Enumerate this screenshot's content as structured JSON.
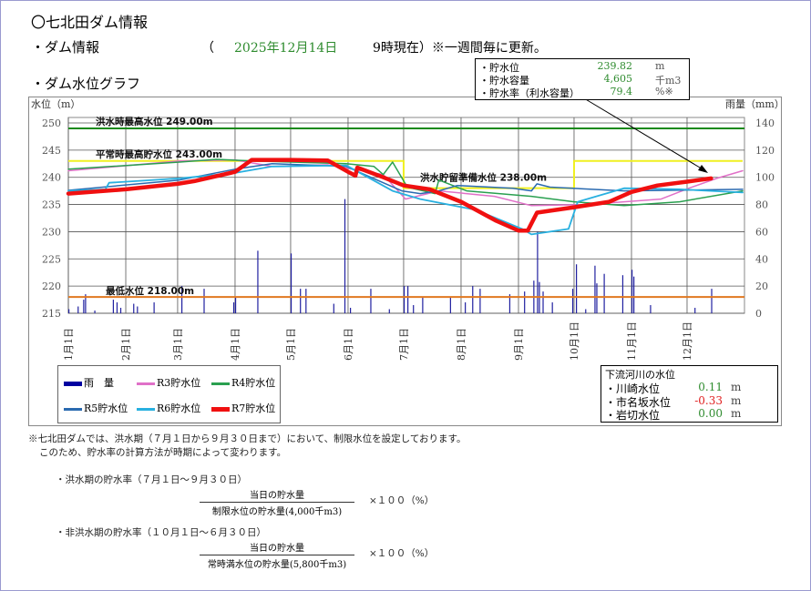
{
  "header": {
    "title": "〇七北田ダム情報",
    "dam_info_label": "・ダム情報",
    "open_paren": "（",
    "date": "2025年12月14日",
    "time_note": "9時現在）※一週間毎に更新。",
    "graph_label": "・ダム水位グラフ"
  },
  "callout": {
    "rows": [
      {
        "label": "・貯水位",
        "value": "239.82",
        "unit": "m"
      },
      {
        "label": "・貯水容量",
        "value": "4,605",
        "unit": "千m3"
      },
      {
        "label": "・貯水率（利水容量）",
        "value": "79.4",
        "unit": "%※"
      }
    ]
  },
  "chart_data": {
    "type": "line",
    "ylabel": "水位（m）",
    "y2label": "雨量（mm）",
    "ylim": [
      215,
      250
    ],
    "y2lim": [
      0,
      140
    ],
    "yticks": [
      "250",
      "245",
      "240",
      "235",
      "230",
      "225",
      "220",
      "215"
    ],
    "y2ticks": [
      "140",
      "120",
      "100",
      "80",
      "60",
      "40",
      "20",
      "0"
    ],
    "xticks": [
      "1月1日",
      "2月1日",
      "3月1日",
      "4月1日",
      "5月1日",
      "6月1日",
      "7月1日",
      "8月1日",
      "9月1日",
      "10月1日",
      "11月1日",
      "12月1日"
    ],
    "x_unit": "day of year",
    "grid": true,
    "reference_lines": [
      {
        "label": "洪水時最高水位 249.00m",
        "value": 249,
        "color": "#1a8a1a"
      },
      {
        "label": "平常時最高貯水位 243.00m",
        "value": 243,
        "color": "#f0f020"
      },
      {
        "label": "洪水貯留準備水位 238.00m",
        "value": 238,
        "color": "#f0f020"
      },
      {
        "label": "最低水位 218.00m",
        "value": 218,
        "color": "#e07820"
      }
    ],
    "restriction_schedule": [
      [
        0,
        243
      ],
      [
        181,
        243
      ],
      [
        181,
        238
      ],
      [
        273,
        238
      ],
      [
        273,
        243
      ],
      [
        364,
        243
      ]
    ],
    "series": [
      {
        "name": "R3貯水位",
        "color": "#e070c8",
        "width": 1.5,
        "points": [
          [
            0,
            241.2
          ],
          [
            60,
            243
          ],
          [
            90,
            243.2
          ],
          [
            110,
            242
          ],
          [
            140,
            242.3
          ],
          [
            170,
            240.5
          ],
          [
            182,
            236
          ],
          [
            200,
            237.5
          ],
          [
            230,
            236.5
          ],
          [
            250,
            234.8
          ],
          [
            280,
            235
          ],
          [
            320,
            236
          ],
          [
            335,
            238
          ],
          [
            350,
            239.8
          ],
          [
            364,
            241.2
          ]
        ]
      },
      {
        "name": "R4貯水位",
        "color": "#2aa050",
        "width": 1.5,
        "points": [
          [
            0,
            241.5
          ],
          [
            60,
            242.8
          ],
          [
            80,
            243.3
          ],
          [
            100,
            243
          ],
          [
            150,
            242.5
          ],
          [
            165,
            242
          ],
          [
            170,
            240.5
          ],
          [
            175,
            242.8
          ],
          [
            183,
            238.2
          ],
          [
            198,
            237
          ],
          [
            200,
            239.5
          ],
          [
            215,
            237.5
          ],
          [
            250,
            236.5
          ],
          [
            273,
            235.5
          ],
          [
            300,
            234.8
          ],
          [
            330,
            235.5
          ],
          [
            364,
            237.5
          ]
        ]
      },
      {
        "name": "R5貯水位",
        "color": "#2a6ab0",
        "width": 1.5,
        "points": [
          [
            0,
            237.6
          ],
          [
            60,
            239.5
          ],
          [
            90,
            241.5
          ],
          [
            110,
            242.5
          ],
          [
            150,
            242
          ],
          [
            170,
            239
          ],
          [
            180,
            237.5
          ],
          [
            190,
            237
          ],
          [
            200,
            237.5
          ],
          [
            210,
            238.5
          ],
          [
            240,
            238
          ],
          [
            250,
            237.5
          ],
          [
            253,
            238.8
          ],
          [
            260,
            238.2
          ],
          [
            300,
            237.5
          ],
          [
            364,
            237.8
          ]
        ]
      },
      {
        "name": "R6貯水位",
        "color": "#28b0e0",
        "width": 1.8,
        "points": [
          [
            0,
            237.5
          ],
          [
            20,
            237.8
          ],
          [
            22,
            239
          ],
          [
            60,
            239.8
          ],
          [
            90,
            240.8
          ],
          [
            110,
            242
          ],
          [
            150,
            242.2
          ],
          [
            175,
            237.5
          ],
          [
            190,
            236
          ],
          [
            220,
            234
          ],
          [
            245,
            230.5
          ],
          [
            250,
            229.5
          ],
          [
            270,
            230.5
          ],
          [
            275,
            235.5
          ],
          [
            300,
            238
          ],
          [
            330,
            237.8
          ],
          [
            364,
            237.2
          ]
        ]
      },
      {
        "name": "R7貯水位",
        "color": "#f01010",
        "width": 4.5,
        "points": [
          [
            0,
            237
          ],
          [
            31,
            237.8
          ],
          [
            59,
            238.8
          ],
          [
            68,
            239.3
          ],
          [
            90,
            241
          ],
          [
            99,
            243.2
          ],
          [
            120,
            243.2
          ],
          [
            140,
            243.1
          ],
          [
            151,
            241
          ],
          [
            155,
            240.3
          ],
          [
            156,
            241.8
          ],
          [
            170,
            240
          ],
          [
            181,
            238.5
          ],
          [
            195,
            237.8
          ],
          [
            212,
            235.5
          ],
          [
            231,
            232
          ],
          [
            243,
            230.2
          ],
          [
            248,
            230.2
          ],
          [
            253,
            233.5
          ],
          [
            273,
            234.5
          ],
          [
            292,
            235.5
          ],
          [
            304,
            237.3
          ],
          [
            318,
            238.5
          ],
          [
            334,
            239.2
          ],
          [
            347,
            239.8
          ]
        ]
      }
    ],
    "rain": {
      "name": "雨　量",
      "color": "#2020a0",
      "unit": "mm",
      "bars": [
        [
          0,
          3
        ],
        [
          5,
          5
        ],
        [
          8,
          10
        ],
        [
          9,
          14
        ],
        [
          14,
          2
        ],
        [
          24,
          10
        ],
        [
          26,
          8
        ],
        [
          28,
          4
        ],
        [
          35,
          7
        ],
        [
          37,
          5
        ],
        [
          46,
          8
        ],
        [
          61,
          20
        ],
        [
          73,
          18
        ],
        [
          89,
          8
        ],
        [
          90,
          12
        ],
        [
          102,
          46
        ],
        [
          120,
          44
        ],
        [
          125,
          18
        ],
        [
          128,
          18
        ],
        [
          143,
          7
        ],
        [
          149,
          84
        ],
        [
          152,
          4
        ],
        [
          163,
          18
        ],
        [
          173,
          3
        ],
        [
          181,
          20
        ],
        [
          183,
          20
        ],
        [
          186,
          6
        ],
        [
          191,
          12
        ],
        [
          206,
          12
        ],
        [
          214,
          8
        ],
        [
          218,
          20
        ],
        [
          222,
          18
        ],
        [
          238,
          14
        ],
        [
          246,
          16
        ],
        [
          251,
          24
        ],
        [
          253,
          60
        ],
        [
          254,
          23
        ],
        [
          256,
          16
        ],
        [
          261,
          8
        ],
        [
          272,
          18
        ],
        [
          274,
          36
        ],
        [
          279,
          3
        ],
        [
          284,
          35
        ],
        [
          285,
          22
        ],
        [
          289,
          29
        ],
        [
          299,
          28
        ],
        [
          304,
          32
        ],
        [
          305,
          27
        ],
        [
          314,
          6
        ],
        [
          338,
          4
        ],
        [
          347,
          18
        ]
      ]
    }
  },
  "legend": [
    {
      "label": "雨　量",
      "color": "#0000a0"
    },
    {
      "label": "R3貯水位",
      "color": "#e070c8"
    },
    {
      "label": "R4貯水位",
      "color": "#2aa050"
    },
    {
      "label": "R5貯水位",
      "color": "#2a6ab0"
    },
    {
      "label": "R6貯水位",
      "color": "#28b0e0"
    },
    {
      "label": "R7貯水位",
      "color": "#f01010"
    }
  ],
  "downstream": {
    "title": "下流河川の水位",
    "rows": [
      {
        "label": "・川崎水位",
        "value": "0.11",
        "unit": "m",
        "color": "#2e8b2e"
      },
      {
        "label": "・市名坂水位",
        "value": "-0.33",
        "unit": "m",
        "color": "#e02020"
      },
      {
        "label": "・岩切水位",
        "value": "0.00",
        "unit": "m",
        "color": "#2e8b2e"
      }
    ]
  },
  "notes": {
    "line1": "※七北田ダムでは、洪水期（７月１日から９月３０日まで）において、制限水位を設定しております。",
    "line2": "このため、貯水率の計算方法が時期によって変わります。",
    "flood_title": "・洪水期の貯水率（７月１日～９月３０日）",
    "flood_num": "当日の貯水量",
    "flood_den": "制限水位の貯水量(4,000千m3)",
    "times": "×１００（%）",
    "nonflood_title": "・非洪水期の貯水率（１０月１日～６月３０日）",
    "nonflood_num": "当日の貯水量",
    "nonflood_den": "常時満水位の貯水量(5,800千m3)"
  }
}
